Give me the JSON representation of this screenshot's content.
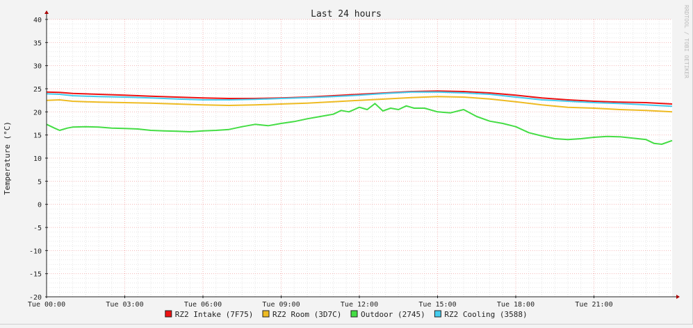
{
  "chart_data": {
    "type": "line",
    "title": "Last 24 hours",
    "ylabel": "Temperature (°C)",
    "watermark": "RRDTOOL / TOBI OETIKER",
    "ylim": [
      -20,
      40
    ],
    "xlim": [
      0,
      24
    ],
    "y_ticks": [
      40,
      35,
      30,
      25,
      20,
      15,
      10,
      5,
      0,
      -5,
      -10,
      -15,
      -20
    ],
    "x_ticks": [
      {
        "value": 0,
        "label": "Tue 00:00"
      },
      {
        "value": 3,
        "label": "Tue 03:00"
      },
      {
        "value": 6,
        "label": "Tue 06:00"
      },
      {
        "value": 9,
        "label": "Tue 09:00"
      },
      {
        "value": 12,
        "label": "Tue 12:00"
      },
      {
        "value": 15,
        "label": "Tue 15:00"
      },
      {
        "value": 18,
        "label": "Tue 18:00"
      },
      {
        "value": 21,
        "label": "Tue 21:00"
      }
    ],
    "grid": true,
    "legend_position": "bottom",
    "series": [
      {
        "name": "RZ2 Intake (7F75)",
        "color": "#ee1111",
        "x": [
          0,
          0.5,
          1,
          2,
          3,
          4,
          5,
          6,
          7,
          8,
          9,
          10,
          11,
          12,
          13,
          14,
          15,
          16,
          17,
          18,
          19,
          20,
          21,
          22,
          23,
          24
        ],
        "y": [
          24.3,
          24.2,
          24.0,
          23.8,
          23.6,
          23.4,
          23.2,
          23.0,
          22.9,
          22.9,
          23.0,
          23.2,
          23.5,
          23.8,
          24.1,
          24.4,
          24.5,
          24.4,
          24.1,
          23.6,
          23.0,
          22.6,
          22.3,
          22.1,
          22.0,
          21.7
        ]
      },
      {
        "name": "RZ2 Room (3D7C)",
        "color": "#eebb22",
        "x": [
          0,
          0.5,
          1,
          2,
          3,
          4,
          5,
          6,
          7,
          8,
          9,
          10,
          11,
          12,
          13,
          14,
          15,
          16,
          17,
          18,
          19,
          20,
          21,
          22,
          23,
          24
        ],
        "y": [
          22.5,
          22.6,
          22.3,
          22.1,
          22.0,
          21.9,
          21.7,
          21.5,
          21.4,
          21.5,
          21.7,
          21.9,
          22.2,
          22.5,
          22.8,
          23.1,
          23.3,
          23.2,
          22.8,
          22.2,
          21.5,
          21.0,
          20.8,
          20.5,
          20.3,
          20.0
        ]
      },
      {
        "name": "Outdoor (2745)",
        "color": "#44dd44",
        "x": [
          0,
          0.3,
          0.5,
          0.8,
          1,
          1.5,
          2,
          2.5,
          3,
          3.5,
          4,
          4.5,
          5,
          5.5,
          6,
          6.5,
          7,
          7.5,
          8,
          8.5,
          9,
          9.5,
          10,
          10.5,
          11,
          11.3,
          11.6,
          12,
          12.3,
          12.6,
          12.9,
          13.2,
          13.5,
          13.8,
          14.1,
          14.5,
          15,
          15.5,
          16,
          16.5,
          17,
          17.5,
          18,
          18.5,
          19,
          19.5,
          20,
          20.5,
          21,
          21.5,
          22,
          22.5,
          23,
          23.3,
          23.6,
          24
        ],
        "y": [
          17.3,
          16.5,
          16.0,
          16.5,
          16.7,
          16.8,
          16.7,
          16.5,
          16.4,
          16.3,
          16.0,
          15.9,
          15.8,
          15.7,
          15.9,
          16.0,
          16.2,
          16.8,
          17.3,
          17.0,
          17.5,
          17.9,
          18.5,
          19.0,
          19.5,
          20.3,
          20.0,
          21.0,
          20.5,
          21.8,
          20.2,
          20.8,
          20.5,
          21.3,
          20.8,
          20.8,
          20.0,
          19.8,
          20.5,
          19.0,
          18.0,
          17.5,
          16.8,
          15.5,
          14.8,
          14.2,
          14.0,
          14.2,
          14.5,
          14.7,
          14.6,
          14.3,
          14.0,
          13.2,
          13.0,
          13.8
        ]
      },
      {
        "name": "RZ2 Cooling (3588)",
        "color": "#44ccee",
        "x": [
          0,
          0.5,
          1,
          2,
          3,
          4,
          5,
          6,
          7,
          8,
          9,
          10,
          11,
          12,
          13,
          14,
          15,
          16,
          17,
          18,
          19,
          20,
          21,
          22,
          23,
          24
        ],
        "y": [
          23.9,
          23.8,
          23.5,
          23.3,
          23.2,
          23.0,
          22.8,
          22.6,
          22.6,
          22.7,
          22.9,
          23.1,
          23.3,
          23.6,
          24.0,
          24.3,
          24.3,
          24.1,
          23.8,
          23.2,
          22.6,
          22.3,
          22.0,
          21.8,
          21.5,
          21.2
        ]
      }
    ]
  }
}
